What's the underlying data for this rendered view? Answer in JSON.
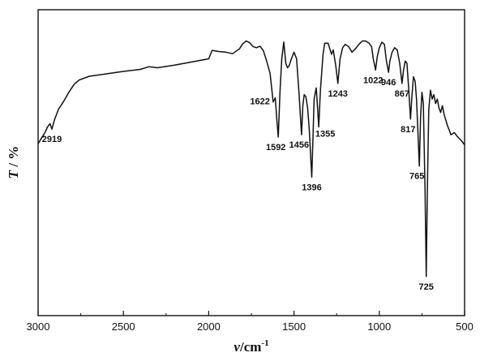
{
  "chart_data": {
    "type": "line",
    "x_axis": {
      "label_symbol": "v",
      "label_unit": "/cm",
      "label_exp": "-1",
      "xlim": [
        3000,
        500
      ],
      "reversed": true,
      "ticks": [
        3000,
        2500,
        2000,
        1500,
        1000,
        500
      ]
    },
    "y_axis": {
      "label_symbol": "T",
      "label_unit": " / %",
      "ticks": []
    },
    "grid": false,
    "series": [
      {
        "points": [
          [
            3000,
            50.0
          ],
          [
            2980,
            52.5
          ],
          [
            2960,
            55.0
          ],
          [
            2945,
            57.5
          ],
          [
            2930,
            59.0
          ],
          [
            2919,
            56.5
          ],
          [
            2905,
            60.5
          ],
          [
            2880,
            65.5
          ],
          [
            2850,
            69.0
          ],
          [
            2820,
            73.0
          ],
          [
            2790,
            76.5
          ],
          [
            2760,
            78.5
          ],
          [
            2700,
            80.2
          ],
          [
            2600,
            81.3
          ],
          [
            2500,
            82.4
          ],
          [
            2400,
            83.3
          ],
          [
            2350,
            84.5
          ],
          [
            2300,
            84.0
          ],
          [
            2200,
            85.2
          ],
          [
            2100,
            86.6
          ],
          [
            2000,
            88.0
          ],
          [
            1980,
            91.8
          ],
          [
            1940,
            91.3
          ],
          [
            1900,
            91.0
          ],
          [
            1860,
            90.3
          ],
          [
            1820,
            92.5
          ],
          [
            1800,
            94.8
          ],
          [
            1780,
            96.0
          ],
          [
            1760,
            95.2
          ],
          [
            1740,
            93.5
          ],
          [
            1720,
            93.0
          ],
          [
            1700,
            93.7
          ],
          [
            1680,
            91.8
          ],
          [
            1660,
            87.0
          ],
          [
            1640,
            81.5
          ],
          [
            1622,
            68.7
          ],
          [
            1610,
            70.5
          ],
          [
            1600,
            60.0
          ],
          [
            1592,
            53.0
          ],
          [
            1582,
            73.0
          ],
          [
            1572,
            88.0
          ],
          [
            1560,
            95.5
          ],
          [
            1548,
            86.0
          ],
          [
            1538,
            84.0
          ],
          [
            1528,
            85.0
          ],
          [
            1515,
            88.0
          ],
          [
            1500,
            91.0
          ],
          [
            1485,
            88.0
          ],
          [
            1470,
            72.0
          ],
          [
            1456,
            54.0
          ],
          [
            1448,
            67.0
          ],
          [
            1440,
            72.0
          ],
          [
            1430,
            71.0
          ],
          [
            1420,
            66.0
          ],
          [
            1410,
            56.0
          ],
          [
            1396,
            35.0
          ],
          [
            1388,
            55.0
          ],
          [
            1382,
            70.0
          ],
          [
            1370,
            75.0
          ],
          [
            1365,
            70.0
          ],
          [
            1355,
            57.5
          ],
          [
            1345,
            74.0
          ],
          [
            1330,
            90.0
          ],
          [
            1320,
            95.0
          ],
          [
            1300,
            95.0
          ],
          [
            1280,
            90.0
          ],
          [
            1270,
            92.0
          ],
          [
            1255,
            85.0
          ],
          [
            1243,
            77.0
          ],
          [
            1230,
            88.0
          ],
          [
            1215,
            93.0
          ],
          [
            1200,
            94.5
          ],
          [
            1180,
            93.5
          ],
          [
            1160,
            91.0
          ],
          [
            1140,
            92.5
          ],
          [
            1120,
            94.5
          ],
          [
            1100,
            96.0
          ],
          [
            1080,
            96.0
          ],
          [
            1060,
            95.0
          ],
          [
            1045,
            93.5
          ],
          [
            1035,
            88.0
          ],
          [
            1022,
            83.0
          ],
          [
            1012,
            89.0
          ],
          [
            1000,
            93.0
          ],
          [
            985,
            95.5
          ],
          [
            970,
            94.5
          ],
          [
            958,
            87.0
          ],
          [
            946,
            82.0
          ],
          [
            938,
            87.0
          ],
          [
            925,
            91.0
          ],
          [
            910,
            93.0
          ],
          [
            895,
            92.0
          ],
          [
            880,
            86.0
          ],
          [
            867,
            77.0
          ],
          [
            858,
            83.0
          ],
          [
            848,
            87.0
          ],
          [
            838,
            86.0
          ],
          [
            828,
            75.0
          ],
          [
            817,
            61.0
          ],
          [
            810,
            70.0
          ],
          [
            800,
            80.0
          ],
          [
            790,
            78.0
          ],
          [
            782,
            70.0
          ],
          [
            765,
            40.0
          ],
          [
            758,
            62.0
          ],
          [
            750,
            73.0
          ],
          [
            742,
            68.0
          ],
          [
            732,
            30.0
          ],
          [
            725,
            -9.5
          ],
          [
            718,
            30.0
          ],
          [
            710,
            65.0
          ],
          [
            700,
            74.0
          ],
          [
            690,
            70.0
          ],
          [
            680,
            72.0
          ],
          [
            670,
            68.0
          ],
          [
            660,
            70.0
          ],
          [
            650,
            66.0
          ],
          [
            640,
            64.0
          ],
          [
            630,
            67.0
          ],
          [
            620,
            63.0
          ],
          [
            600,
            58.0
          ],
          [
            580,
            54.0
          ],
          [
            560,
            55.0
          ],
          [
            540,
            53.0
          ],
          [
            520,
            51.5
          ],
          [
            500,
            49.5
          ]
        ]
      }
    ],
    "ylim": [
      -27,
      110
    ],
    "annotations": [
      {
        "label": "2919",
        "x": 2919,
        "y": 56.5,
        "pos": "below"
      },
      {
        "label": "1622",
        "x": 1622,
        "y": 68.7,
        "pos": "left"
      },
      {
        "label": "1592",
        "x": 1592,
        "y": 53.0,
        "pos": "below-left"
      },
      {
        "label": "1456",
        "x": 1456,
        "y": 54.0,
        "pos": "below-left"
      },
      {
        "label": "1396",
        "x": 1396,
        "y": 35.0,
        "pos": "below"
      },
      {
        "label": "1355",
        "x": 1355,
        "y": 57.5,
        "pos": "below-right"
      },
      {
        "label": "1243",
        "x": 1243,
        "y": 77.0,
        "pos": "below"
      },
      {
        "label": "1022",
        "x": 1022,
        "y": 83.0,
        "pos": "below-left"
      },
      {
        "label": "946",
        "x": 946,
        "y": 82.0,
        "pos": "below"
      },
      {
        "label": "867",
        "x": 867,
        "y": 77.0,
        "pos": "below"
      },
      {
        "label": "817",
        "x": 817,
        "y": 61.0,
        "pos": "below-left"
      },
      {
        "label": "765",
        "x": 765,
        "y": 40.0,
        "pos": "below-left"
      },
      {
        "label": "725",
        "x": 725,
        "y": -9.5,
        "pos": "below"
      }
    ]
  }
}
